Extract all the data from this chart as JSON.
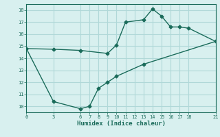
{
  "line1_x": [
    0,
    3,
    6,
    9,
    10,
    11,
    13,
    14,
    15,
    16,
    17,
    18,
    21
  ],
  "line1_y": [
    14.8,
    14.75,
    14.65,
    14.4,
    15.1,
    17.0,
    17.2,
    18.1,
    17.5,
    16.6,
    16.6,
    16.5,
    15.4
  ],
  "line2_x": [
    0,
    3,
    6,
    7,
    8,
    9,
    10,
    13,
    21
  ],
  "line2_y": [
    14.8,
    10.4,
    9.8,
    10.0,
    11.5,
    12.0,
    12.5,
    13.5,
    15.4
  ],
  "line_color": "#1a6b5a",
  "bg_color": "#d8f0ef",
  "grid_color": "#b0d8d8",
  "xlabel": "Humidex (Indice chaleur)",
  "xticks": [
    0,
    3,
    6,
    7,
    8,
    9,
    10,
    11,
    12,
    13,
    14,
    15,
    16,
    17,
    18,
    21
  ],
  "yticks": [
    10,
    11,
    12,
    13,
    14,
    15,
    16,
    17,
    18
  ],
  "xlim": [
    0,
    21
  ],
  "ylim": [
    9.5,
    18.5
  ],
  "marker": "D",
  "markersize": 2.5,
  "linewidth": 1.0
}
